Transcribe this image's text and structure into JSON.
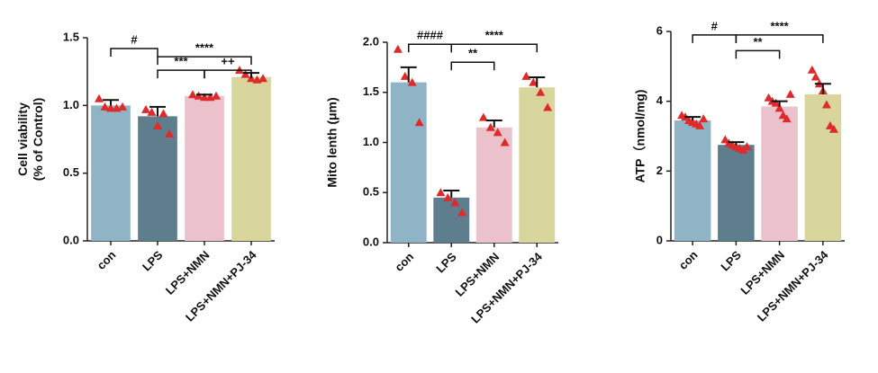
{
  "chart_data": [
    {
      "type": "bar",
      "y_label": [
        "Cell viability",
        "(% of Control)"
      ],
      "categories": [
        "con",
        "LPS",
        "LPS+NMN",
        "LPS+NMN+PJ-34"
      ],
      "values": [
        1.0,
        0.92,
        1.07,
        1.21
      ],
      "errors": [
        0.04,
        0.07,
        0.01,
        0.03
      ],
      "points": [
        [
          1.05,
          0.99,
          0.98,
          0.98,
          0.99
        ],
        [
          0.97,
          0.95,
          0.85,
          0.94,
          0.79
        ],
        [
          1.08,
          1.07,
          1.06,
          1.06,
          1.07
        ],
        [
          1.26,
          1.23,
          1.2,
          1.19,
          1.2
        ]
      ],
      "colors": [
        "#8fb4c5",
        "#5e7d8d",
        "#ebc2cb",
        "#d8d69c"
      ],
      "point_color": "#e02a2a",
      "ylim": [
        0,
        1.5
      ],
      "yticks": [
        {
          "value": 0,
          "label": "0.0"
        },
        0.5,
        {
          "value": 1,
          "label": "1.0"
        },
        1.5
      ],
      "annotations": [
        "#",
        "****",
        "***",
        "++"
      ]
    },
    {
      "type": "bar",
      "y_label": [
        "Mito lenth (μm)"
      ],
      "categories": [
        "con",
        "LPS",
        "LPS+NMN",
        "LPS+NMN+PJ-34"
      ],
      "values": [
        1.6,
        0.45,
        1.15,
        1.55
      ],
      "errors": [
        0.15,
        0.07,
        0.07,
        0.1
      ],
      "points": [
        [
          1.93,
          1.66,
          1.6,
          1.2
        ],
        [
          0.5,
          0.45,
          0.4,
          0.3
        ],
        [
          1.25,
          1.15,
          1.1,
          1.0
        ],
        [
          1.66,
          1.6,
          1.5,
          1.35
        ]
      ],
      "colors": [
        "#8fb4c5",
        "#5e7d8d",
        "#ebc2cb",
        "#d8d69c"
      ],
      "point_color": "#e02a2a",
      "ylim": [
        0,
        2
      ],
      "yticks": [
        {
          "value": 0,
          "label": "0.0"
        },
        0.5,
        {
          "value": 1,
          "label": "1.0"
        },
        1.5,
        {
          "value": 2,
          "label": "2.0"
        }
      ],
      "annotations": [
        "####",
        "****",
        "**"
      ]
    },
    {
      "type": "bar",
      "y_label": [
        "ATP（nmol/mg)"
      ],
      "categories": [
        "con",
        "LPS",
        "LPS+NMN",
        "LPS+NMN+PJ-34"
      ],
      "values": [
        3.45,
        2.75,
        3.85,
        4.2
      ],
      "errors": [
        0.1,
        0.08,
        0.15,
        0.3
      ],
      "points": [
        [
          3.6,
          3.55,
          3.45,
          3.4,
          3.35,
          3.3,
          3.5
        ],
        [
          2.9,
          2.8,
          2.75,
          2.7,
          2.65,
          2.6,
          2.7
        ],
        [
          4.1,
          4.0,
          3.95,
          3.8,
          3.6,
          3.5,
          4.2
        ],
        [
          4.9,
          4.7,
          4.5,
          4.3,
          3.9,
          3.3,
          3.2
        ]
      ],
      "colors": [
        "#8fb4c5",
        "#5e7d8d",
        "#ebc2cb",
        "#d8d69c"
      ],
      "point_color": "#e02a2a",
      "ylim": [
        0,
        6
      ],
      "yticks": [
        0,
        2,
        4,
        6
      ],
      "annotations": [
        "#",
        "****",
        "**"
      ]
    }
  ]
}
